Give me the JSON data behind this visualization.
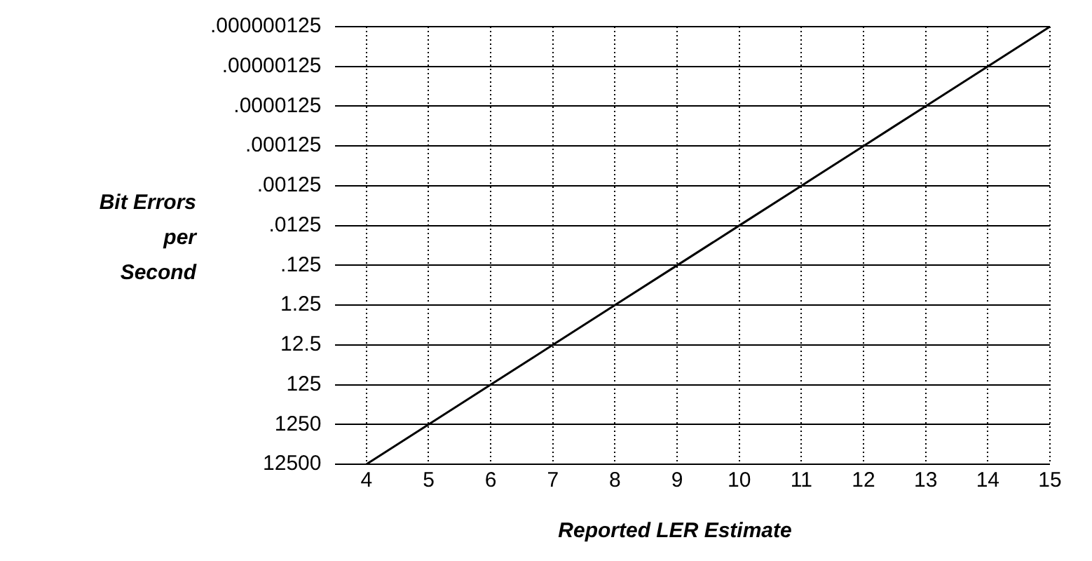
{
  "chart_data": {
    "type": "line",
    "xlabel": "Reported LER Estimate",
    "ylabel": "Bit Errors per Second",
    "x": [
      4,
      5,
      6,
      7,
      8,
      9,
      10,
      11,
      12,
      13,
      14,
      15
    ],
    "series": [
      {
        "color": "#000000",
        "values": [
          12500,
          1250,
          125,
          12.5,
          1.25,
          0.125,
          0.0125,
          0.00125,
          0.000125,
          1.25e-05,
          1.25e-06,
          1.25e-07
        ]
      }
    ],
    "xlim": [
      3.5,
      15
    ],
    "xticks": [
      4,
      5,
      6,
      7,
      8,
      9,
      10,
      11,
      12,
      13,
      14,
      15
    ],
    "ylim": [
      12500,
      1.25e-07
    ],
    "yticks": [
      12500,
      1250,
      125,
      12.5,
      1.25,
      {
        "value": 0.125,
        "label": ".125"
      },
      {
        "value": 0.0125,
        "label": ".0125"
      },
      {
        "value": 0.00125,
        "label": ".00125"
      },
      {
        "value": 0.000125,
        "label": ".000125"
      },
      {
        "value": 1.25e-05,
        "label": ".0000125"
      },
      {
        "value": 1.25e-06,
        "label": ".00000125"
      },
      {
        "value": 1.25e-07,
        "label": ".000000125"
      }
    ],
    "log": "y",
    "grid": true,
    "legend": false,
    "marker": "none",
    "line_style": "solid"
  }
}
